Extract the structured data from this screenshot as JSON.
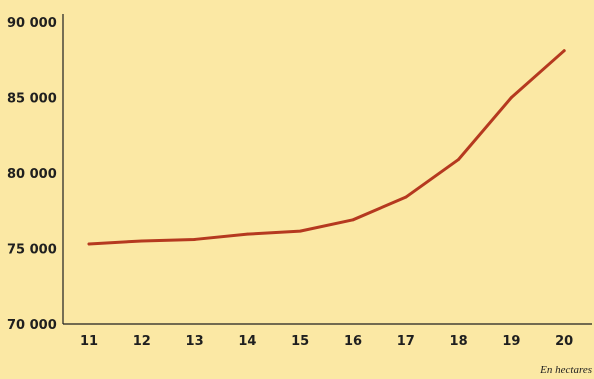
{
  "chart_data": {
    "type": "line",
    "title": "",
    "xlabel": "",
    "ylabel": "",
    "x": [
      "11",
      "12",
      "13",
      "14",
      "15",
      "16",
      "17",
      "18",
      "19",
      "20"
    ],
    "series": [
      {
        "values": [
          75300,
          75500,
          75600,
          75950,
          76150,
          76900,
          78400,
          80900,
          85000,
          88100
        ]
      }
    ],
    "ylim": [
      70000,
      90000
    ],
    "y_ticks": [
      "70 000",
      "75 000",
      "80 000",
      "85 000",
      "90 000"
    ],
    "grid": false,
    "note": "En hectares",
    "colors": {
      "background": "#fbe8a4",
      "line": "#b5391f",
      "axis": "#1f1f1f"
    }
  }
}
